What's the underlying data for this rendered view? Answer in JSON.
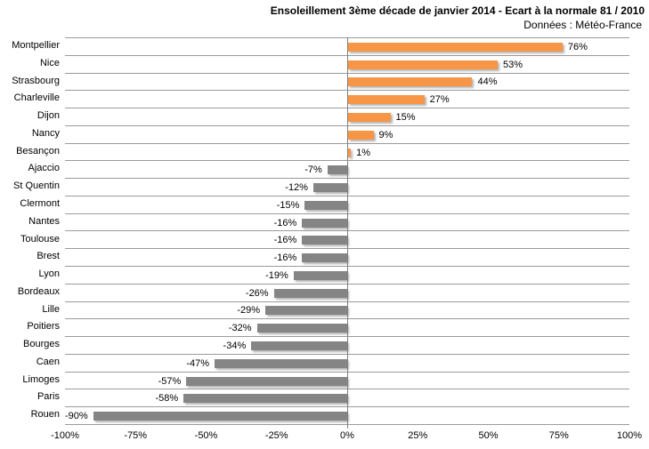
{
  "header": {
    "title": "Ensoleillement 3ème décade de janvier 2014 - Ecart à la normale 81 / 2010",
    "subtitle": "Données : Météo-France"
  },
  "chart_data": {
    "type": "bar",
    "orientation": "horizontal",
    "title": "Ensoleillement 3ème décade de janvier 2014 - Ecart à la normale 81 / 2010",
    "subtitle": "Données : Météo-France",
    "xlabel": "",
    "ylabel": "",
    "categories": [
      "Montpellier",
      "Nice",
      "Strasbourg",
      "Charleville",
      "Dijon",
      "Nancy",
      "Besançon",
      "Ajaccio",
      "St Quentin",
      "Clermont",
      "Nantes",
      "Toulouse",
      "Brest",
      "Lyon",
      "Bordeaux",
      "Lille",
      "Poitiers",
      "Bourges",
      "Caen",
      "Limoges",
      "Paris",
      "Rouen"
    ],
    "values": [
      76,
      53,
      44,
      27,
      15,
      9,
      1,
      -7,
      -12,
      -15,
      -16,
      -16,
      -16,
      -19,
      -26,
      -29,
      -32,
      -34,
      -47,
      -57,
      -58,
      -90
    ],
    "value_labels": [
      "76%",
      "53%",
      "44%",
      "27%",
      "15%",
      "9%",
      "1%",
      "-7%",
      "-12%",
      "-15%",
      "-16%",
      "-16%",
      "-16%",
      "-19%",
      "-26%",
      "-29%",
      "-32%",
      "-34%",
      "-47%",
      "-57%",
      "-58%",
      "-90%"
    ],
    "x_ticks": [
      "-100%",
      "-75%",
      "-50%",
      "-25%",
      "0%",
      "25%",
      "50%",
      "75%",
      "100%"
    ],
    "x_tick_values": [
      -100,
      -75,
      -50,
      -25,
      0,
      25,
      50,
      75,
      100
    ],
    "xlim": [
      -100,
      100
    ],
    "grid": "horizontal category separators",
    "legend": "none",
    "colors": {
      "positive_bar": "#F79646",
      "negative_bar": "#858585",
      "gridline": "#9B9B9B",
      "axis": "#808080",
      "text": "#000000"
    }
  }
}
